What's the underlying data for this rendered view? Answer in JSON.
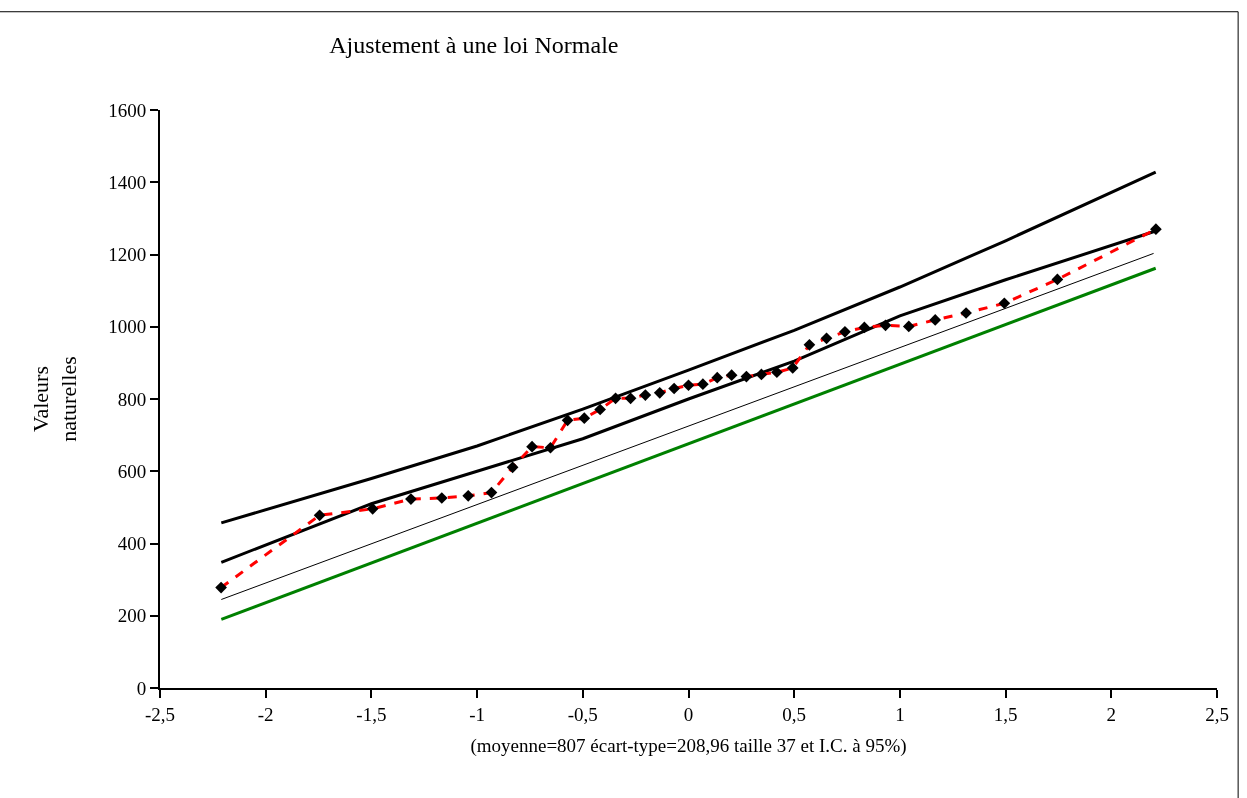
{
  "chart_data": {
    "type": "line",
    "title": "Ajustement à une loi Normale",
    "xlabel": "(moyenne=807 écart-type=208,96 taille 37 et I.C. à 95%)",
    "ylabel": "Valeurs\nnaturelles",
    "xlim": [
      -2.5,
      2.5
    ],
    "ylim": [
      0,
      1600
    ],
    "xticks": [
      {
        "value": -2.5,
        "label": "-2,5"
      },
      {
        "value": -2,
        "label": "-2"
      },
      {
        "value": -1.5,
        "label": "-1,5"
      },
      {
        "value": -1,
        "label": "-1"
      },
      {
        "value": -0.5,
        "label": "-0,5"
      },
      {
        "value": 0,
        "label": "0"
      },
      {
        "value": 0.5,
        "label": "0,5"
      },
      {
        "value": 1,
        "label": "1"
      },
      {
        "value": 1.5,
        "label": "1,5"
      },
      {
        "value": 2,
        "label": "2"
      },
      {
        "value": 2.5,
        "label": "2,5"
      }
    ],
    "yticks": [
      0,
      200,
      400,
      600,
      800,
      1000,
      1200,
      1400,
      1600
    ],
    "series": [
      {
        "color": "#000000",
        "line_style": "solid",
        "marker": "none",
        "x": [
          -2.21,
          -1.5,
          -1.0,
          -0.5,
          0,
          0.5,
          1.0,
          1.5,
          2.21
        ],
        "values": [
          457,
          580,
          670,
          772,
          880,
          990,
          1110,
          1238,
          1428
        ]
      },
      {
        "color": "#000000",
        "line_style": "solid",
        "marker": "none",
        "x": [
          -2.21,
          -1.5,
          -1.0,
          -0.5,
          0,
          0.5,
          1.0,
          1.5,
          2.21
        ],
        "values": [
          348,
          510,
          600,
          690,
          800,
          905,
          1030,
          1130,
          1265
        ]
      },
      {
        "color": "#000000",
        "line_style": "solid",
        "marker": "none",
        "x": [
          -2.21,
          2.2
        ],
        "values": [
          245,
          1203
        ]
      },
      {
        "color": "#008000",
        "line_style": "solid",
        "marker": "none",
        "x": [
          -2.21,
          2.21
        ],
        "values": [
          190,
          1162
        ]
      },
      {
        "color": "#ff0000",
        "line_style": "dashed",
        "marker": "diamond",
        "x": [
          -2.211,
          -1.745,
          -1.494,
          -1.313,
          -1.167,
          -1.042,
          -0.932,
          -0.832,
          -0.74,
          -0.653,
          -0.572,
          -0.493,
          -0.418,
          -0.345,
          -0.274,
          -0.204,
          -0.136,
          -0.068,
          0,
          0.068,
          0.136,
          0.204,
          0.274,
          0.345,
          0.418,
          0.493,
          0.572,
          0.653,
          0.74,
          0.832,
          0.932,
          1.042,
          1.167,
          1.313,
          1.494,
          1.745,
          2.211
        ],
        "values": [
          278,
          478,
          496,
          523,
          526,
          532,
          541,
          611,
          668,
          665,
          741,
          747,
          771,
          802,
          802,
          811,
          817,
          829,
          838,
          841,
          859,
          866,
          862,
          868,
          874,
          886,
          950,
          968,
          986,
          998,
          1004,
          1001,
          1019,
          1038,
          1065,
          1131,
          1270
        ]
      }
    ]
  }
}
